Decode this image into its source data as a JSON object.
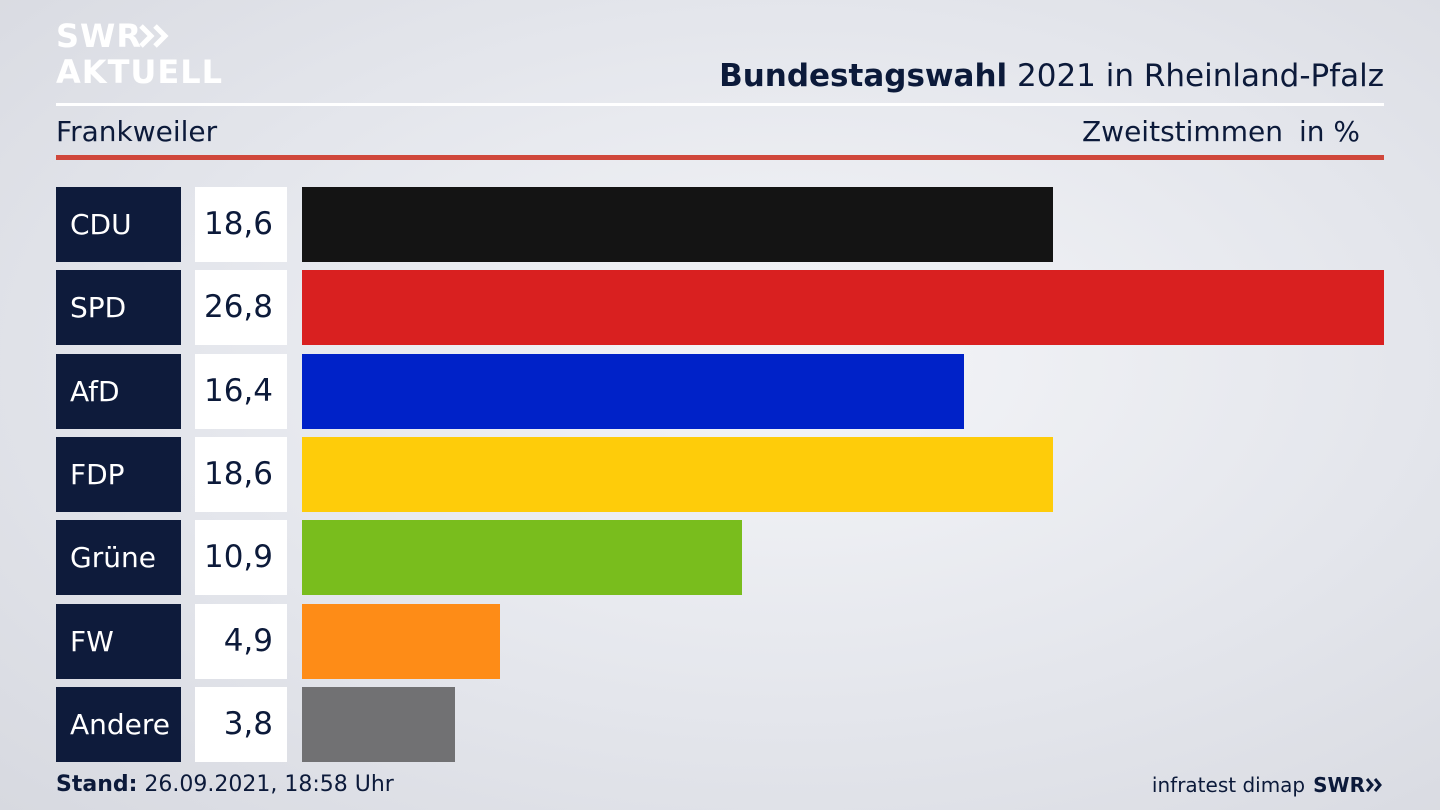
{
  "header": {
    "logo_line1": "SWR",
    "logo_line2": "AKTUELL",
    "title_strong": "Bundestagswahl",
    "title_rest": " 2021 in Rheinland-Pfalz",
    "subtitle": "Frankweiler",
    "measure": "Zweitstimmen",
    "unit": "in %"
  },
  "chart_data": {
    "type": "bar",
    "orientation": "horizontal",
    "title": "Bundestagswahl 2021 in Rheinland-Pfalz",
    "subtitle": "Frankweiler",
    "measure": "Zweitstimmen",
    "unit": "in %",
    "categories": [
      "CDU",
      "SPD",
      "AfD",
      "FDP",
      "Grüne",
      "FW",
      "Andere"
    ],
    "values": [
      18.6,
      26.8,
      16.4,
      18.6,
      10.9,
      4.9,
      3.8
    ],
    "value_labels": [
      "18,6",
      "26,8",
      "16,4",
      "18,6",
      "10,9",
      "4,9",
      "3,8"
    ],
    "colors": [
      "#141414",
      "#d92020",
      "#0022c8",
      "#fecc0a",
      "#79bd1d",
      "#fe8c17",
      "#717173"
    ],
    "xlim": [
      0,
      26.8
    ],
    "grid": false,
    "legend": "none"
  },
  "footer": {
    "stand_label": "Stand:",
    "stand_value": " 26.09.2021, 18:58 Uhr",
    "source": "infratest dimap",
    "brand": "SWR"
  }
}
